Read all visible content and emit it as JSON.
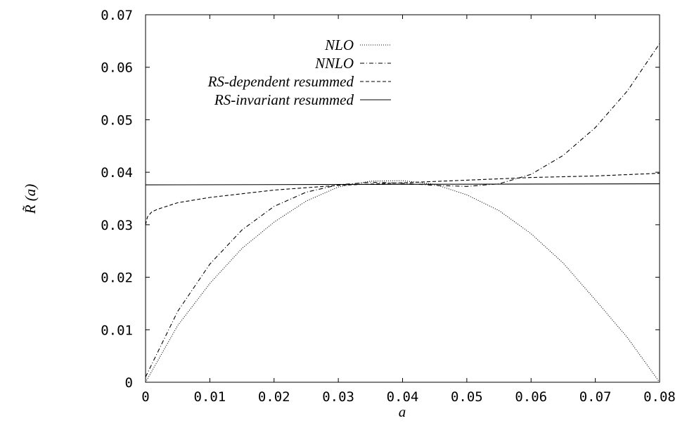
{
  "chart_data": {
    "type": "line",
    "xlabel": "a",
    "ylabel": "R̃ (a)",
    "xlim": [
      0,
      0.08
    ],
    "ylim": [
      0,
      0.07
    ],
    "x_ticks": [
      "0",
      "0.01",
      "0.02",
      "0.03",
      "0.04",
      "0.05",
      "0.06",
      "0.07",
      "0.08"
    ],
    "y_ticks": [
      "0",
      "0.01",
      "0.02",
      "0.03",
      "0.04",
      "0.05",
      "0.06",
      "0.07"
    ],
    "grid": false,
    "legend_position": "top-center",
    "series": [
      {
        "name": "NLO",
        "style": "dotted",
        "x": [
          0,
          0.005,
          0.01,
          0.015,
          0.02,
          0.025,
          0.03,
          0.035,
          0.04,
          0.045,
          0.05,
          0.055,
          0.06,
          0.065,
          0.07,
          0.075,
          0.08
        ],
        "y": [
          0,
          0.0108,
          0.0188,
          0.0255,
          0.0305,
          0.0345,
          0.0372,
          0.0383,
          0.0384,
          0.0377,
          0.0357,
          0.0327,
          0.0283,
          0.0227,
          0.0157,
          0.0085,
          0.0
        ]
      },
      {
        "name": "NNLO",
        "style": "dash-dot",
        "x": [
          0,
          0.005,
          0.01,
          0.015,
          0.02,
          0.025,
          0.03,
          0.035,
          0.04,
          0.045,
          0.05,
          0.055,
          0.06,
          0.065,
          0.07,
          0.075,
          0.08
        ],
        "y": [
          0.001,
          0.0135,
          0.0225,
          0.029,
          0.0335,
          0.0362,
          0.0376,
          0.0381,
          0.0379,
          0.0375,
          0.0373,
          0.0378,
          0.0396,
          0.0432,
          0.0485,
          0.0555,
          0.0645
        ]
      },
      {
        "name": "RS-dependent resummed",
        "style": "dashed",
        "x": [
          0,
          0.0003,
          0.001,
          0.002,
          0.005,
          0.01,
          0.02,
          0.03,
          0.04,
          0.05,
          0.06,
          0.07,
          0.08
        ],
        "y": [
          0.03,
          0.0315,
          0.0325,
          0.033,
          0.0342,
          0.0352,
          0.0366,
          0.0375,
          0.038,
          0.0385,
          0.039,
          0.0393,
          0.0398
        ]
      },
      {
        "name": "RS-invariant resummed",
        "style": "solid",
        "x": [
          0,
          0.08
        ],
        "y": [
          0.0376,
          0.0378
        ]
      }
    ]
  }
}
